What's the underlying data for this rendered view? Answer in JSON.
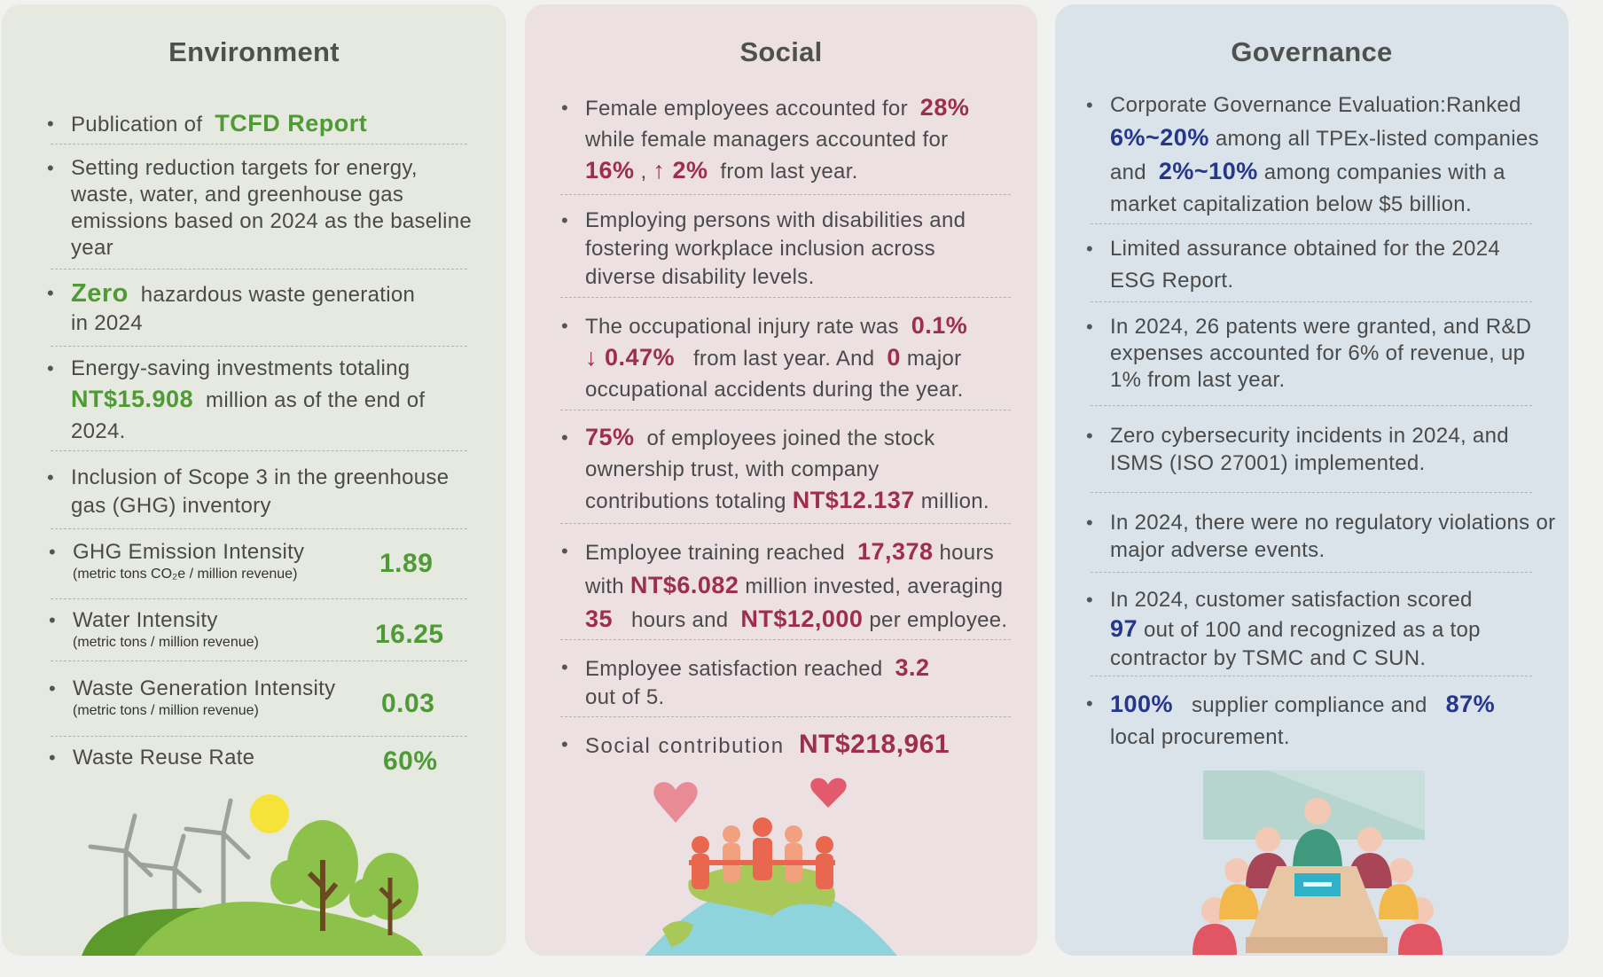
{
  "environment": {
    "title": "Environment",
    "items": [
      {
        "pre": "Publication of",
        "hl": "TCFD Report"
      },
      {
        "text": "Setting reduction targets for energy, waste, water, and greenhouse gas emissions based on 2024 as the baseline year"
      },
      {
        "hl": "Zero",
        "post1": "hazardous waste generation",
        "post2": "in 2024"
      },
      {
        "pre": "Energy-saving investments totaling",
        "hl": "NT$15.908",
        "post1": "million as of the end of",
        "post2": "2024."
      },
      {
        "text": "Inclusion of Scope 3 in the greenhouse gas (GHG) inventory"
      },
      {
        "label": "GHG Emission Intensity",
        "sub": "(metric tons CO₂e / million revenue)",
        "value": "1.89"
      },
      {
        "label": "Water Intensity",
        "sub": "(metric tons  / million revenue)",
        "value": "16.25"
      },
      {
        "label": "Waste Generation Intensity",
        "sub": "(metric tons  / million revenue)",
        "value": "0.03"
      },
      {
        "label": "Waste Reuse Rate",
        "value": "60%"
      }
    ]
  },
  "social": {
    "title": "Social",
    "items": [
      {
        "l1a": "Female employees accounted for",
        "v1": "28%",
        "l2": "while female managers accounted for",
        "v2": "16%",
        "sep": ",",
        "v3": "↑ 2%",
        "l3": "from last year."
      },
      {
        "text": "Employing persons with disabilities and fostering workplace inclusion across diverse disability levels."
      },
      {
        "l1a": "The occupational injury rate was",
        "v1": "0.1%",
        "v2": "↓ 0.47%",
        "l2": "from last year. And",
        "v3": "0",
        "l3": "major",
        "l4": "occupational accidents during the year."
      },
      {
        "v1": "75%",
        "l1": "of employees joined the stock",
        "l2": "ownership trust, with company",
        "l3": "contributions totaling",
        "v2": "NT$12.137",
        "l4": "million."
      },
      {
        "l1": "Employee training reached",
        "v1": "17,378",
        "l2": "hours",
        "l3": "with",
        "v2": "NT$6.082",
        "l4": "million invested, averaging",
        "v3": "35",
        "l5": "hours and",
        "v4": "NT$12,000",
        "l6": "per employee."
      },
      {
        "l1": "Employee satisfaction reached",
        "v1": "3.2",
        "l2": "out of 5."
      },
      {
        "l1": "Social contribution",
        "v1": "NT$218,961"
      }
    ]
  },
  "governance": {
    "title": "Governance",
    "items": [
      {
        "l1": "Corporate Governance Evaluation:Ranked",
        "v1": "6%~20%",
        "l2": "among all TPEx-listed companies",
        "l3": "and",
        "v2": "2%~10%",
        "l4": "among companies with a",
        "l5": "market capitalization below $5 billion."
      },
      {
        "text": "Limited assurance obtained for the 2024 ESG Report."
      },
      {
        "text": "In 2024, 26 patents were granted, and R&D expenses accounted for 6% of revenue, up 1% from last year."
      },
      {
        "text": "Zero cybersecurity incidents in 2024, and ISMS (ISO 27001) implemented."
      },
      {
        "text": "In 2024, there were no regulatory violations or major adverse events."
      },
      {
        "l1": "In 2024, customer satisfaction scored",
        "v1": "97",
        "l2": "out of 100 and recognized as a top",
        "l3": "contractor by TSMC and C SUN."
      },
      {
        "v1": "100%",
        "l1": "supplier compliance and",
        "v2": "87%",
        "l2": "local procurement."
      }
    ]
  },
  "colors": {
    "env_bg": "#e6e9e0",
    "soc_bg": "#ece0e2",
    "gov_bg": "#dae3ea",
    "env_accent": "#4e9a34",
    "soc_accent": "#9e2f4c",
    "gov_accent": "#26368b"
  }
}
